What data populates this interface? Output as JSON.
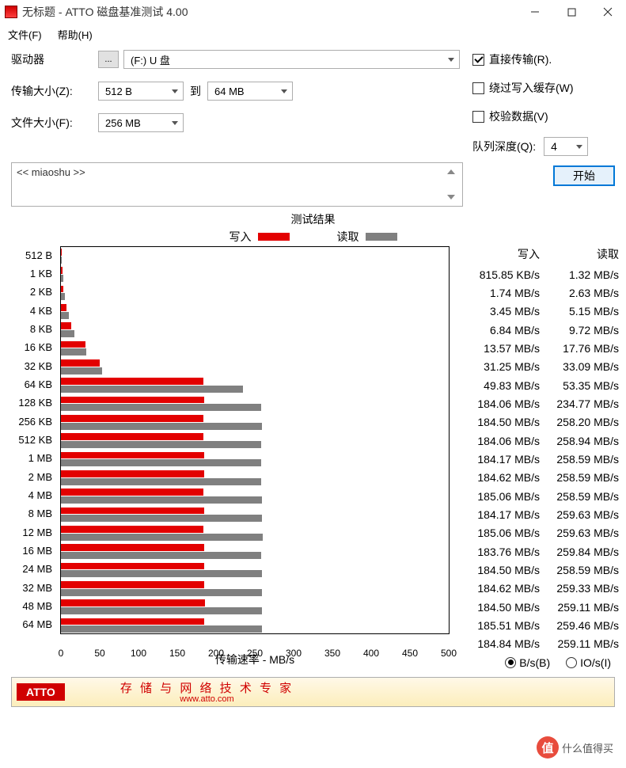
{
  "window": {
    "title": "无标题 - ATTO 磁盘基准测试 4.00"
  },
  "menu": {
    "file": "文件(F)",
    "help": "帮助(H)"
  },
  "form": {
    "drive_label": "驱动器",
    "drive_value": "(F:) U 盘",
    "dots": "...",
    "transfer_size_label": "传输大小(Z):",
    "transfer_from": "512 B",
    "to_label": "到",
    "transfer_to": "64 MB",
    "file_size_label": "文件大小(F):",
    "file_size_value": "256 MB",
    "direct_transfer": "直接传输(R).",
    "bypass_cache": "绕过写入缓存(W)",
    "verify_data": "校验数据(V)",
    "queue_depth_label": "队列深度(Q):",
    "queue_depth_value": "4",
    "desc_text": "<< miaoshu >>",
    "start_btn": "开始"
  },
  "results": {
    "title": "测试结果",
    "legend_write": "写入",
    "legend_read": "读取",
    "write_color": "#e30000",
    "read_color": "#808080",
    "xaxis_title": "传输速率 - MB/s",
    "xmax": 500,
    "xticks": [
      0,
      50,
      100,
      150,
      200,
      250,
      300,
      350,
      400,
      450,
      500
    ],
    "table_header_write": "写入",
    "table_header_read": "读取",
    "radio_bs": "B/s(B)",
    "radio_ios": "IO/s(I)",
    "rows": [
      {
        "label": "512 B",
        "write_mb": 0.816,
        "read_mb": 1.32,
        "write_txt": "815.85 KB/s",
        "read_txt": "1.32 MB/s"
      },
      {
        "label": "1 KB",
        "write_mb": 1.74,
        "read_mb": 2.63,
        "write_txt": "1.74 MB/s",
        "read_txt": "2.63 MB/s"
      },
      {
        "label": "2 KB",
        "write_mb": 3.45,
        "read_mb": 5.15,
        "write_txt": "3.45 MB/s",
        "read_txt": "5.15 MB/s"
      },
      {
        "label": "4 KB",
        "write_mb": 6.84,
        "read_mb": 9.72,
        "write_txt": "6.84 MB/s",
        "read_txt": "9.72 MB/s"
      },
      {
        "label": "8 KB",
        "write_mb": 13.57,
        "read_mb": 17.76,
        "write_txt": "13.57 MB/s",
        "read_txt": "17.76 MB/s"
      },
      {
        "label": "16 KB",
        "write_mb": 31.25,
        "read_mb": 33.09,
        "write_txt": "31.25 MB/s",
        "read_txt": "33.09 MB/s"
      },
      {
        "label": "32 KB",
        "write_mb": 49.83,
        "read_mb": 53.35,
        "write_txt": "49.83 MB/s",
        "read_txt": "53.35 MB/s"
      },
      {
        "label": "64 KB",
        "write_mb": 184.06,
        "read_mb": 234.77,
        "write_txt": "184.06 MB/s",
        "read_txt": "234.77 MB/s"
      },
      {
        "label": "128 KB",
        "write_mb": 184.5,
        "read_mb": 258.2,
        "write_txt": "184.50 MB/s",
        "read_txt": "258.20 MB/s"
      },
      {
        "label": "256 KB",
        "write_mb": 184.06,
        "read_mb": 258.94,
        "write_txt": "184.06 MB/s",
        "read_txt": "258.94 MB/s"
      },
      {
        "label": "512 KB",
        "write_mb": 184.17,
        "read_mb": 258.59,
        "write_txt": "184.17 MB/s",
        "read_txt": "258.59 MB/s"
      },
      {
        "label": "1 MB",
        "write_mb": 184.62,
        "read_mb": 258.59,
        "write_txt": "184.62 MB/s",
        "read_txt": "258.59 MB/s"
      },
      {
        "label": "2 MB",
        "write_mb": 185.06,
        "read_mb": 258.59,
        "write_txt": "185.06 MB/s",
        "read_txt": "258.59 MB/s"
      },
      {
        "label": "4 MB",
        "write_mb": 184.17,
        "read_mb": 259.63,
        "write_txt": "184.17 MB/s",
        "read_txt": "259.63 MB/s"
      },
      {
        "label": "8 MB",
        "write_mb": 185.06,
        "read_mb": 259.63,
        "write_txt": "185.06 MB/s",
        "read_txt": "259.63 MB/s"
      },
      {
        "label": "12 MB",
        "write_mb": 183.76,
        "read_mb": 259.84,
        "write_txt": "183.76 MB/s",
        "read_txt": "259.84 MB/s"
      },
      {
        "label": "16 MB",
        "write_mb": 184.5,
        "read_mb": 258.59,
        "write_txt": "184.50 MB/s",
        "read_txt": "258.59 MB/s"
      },
      {
        "label": "24 MB",
        "write_mb": 184.62,
        "read_mb": 259.33,
        "write_txt": "184.62 MB/s",
        "read_txt": "259.33 MB/s"
      },
      {
        "label": "32 MB",
        "write_mb": 184.5,
        "read_mb": 259.11,
        "write_txt": "184.50 MB/s",
        "read_txt": "259.11 MB/s"
      },
      {
        "label": "48 MB",
        "write_mb": 185.51,
        "read_mb": 259.46,
        "write_txt": "185.51 MB/s",
        "read_txt": "259.46 MB/s"
      },
      {
        "label": "64 MB",
        "write_mb": 184.84,
        "read_mb": 259.11,
        "write_txt": "184.84 MB/s",
        "read_txt": "259.11 MB/s"
      }
    ]
  },
  "banner": {
    "brand": "ATTO",
    "tagline": "存 储 与 网 络 技 术 专 家",
    "url": "www.atto.com"
  },
  "watermark": {
    "badge": "值",
    "text": "什么值得买"
  }
}
